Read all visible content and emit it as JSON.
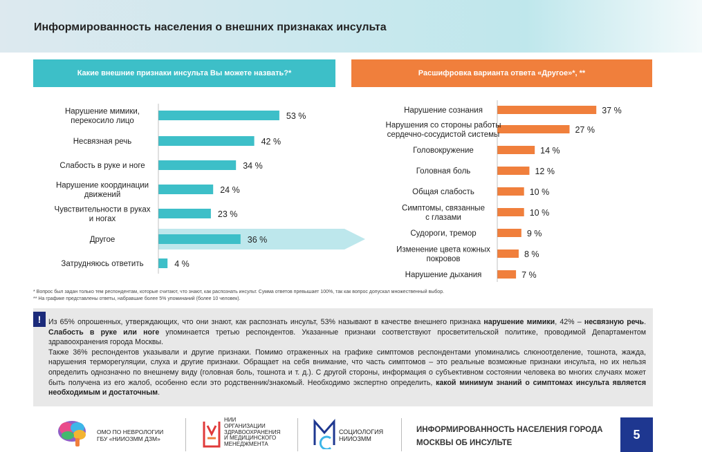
{
  "page": {
    "title": "Информированность населения о внешних признаках инсульта",
    "number": "5"
  },
  "left_panel": {
    "header": "Какие внешние признаки инсульта Вы можете назвать?*"
  },
  "right_panel": {
    "header": "Расшифровка варианта ответа «Другое»*, **"
  },
  "chart_data": [
    {
      "type": "bar",
      "orientation": "horizontal",
      "title": "Какие внешние признаки инсульта Вы можете назвать?*",
      "categories": [
        [
          "Нарушение мимики,",
          "перекосило лицо"
        ],
        [
          "Несвязная речь"
        ],
        [
          "Слабость в руке и ноге"
        ],
        [
          "Нарушение координации",
          "движений"
        ],
        [
          "Чувствительности в руках",
          "и ногах"
        ],
        [
          "Другое"
        ],
        [
          "Затрудняюсь ответить"
        ]
      ],
      "values": [
        53,
        42,
        34,
        24,
        23,
        36,
        4
      ],
      "value_labels": [
        "53 %",
        "42 %",
        "34 %",
        "24 %",
        "23 %",
        "36 %",
        "4 %"
      ],
      "highlighted": "Другое",
      "color": "#3dbfc8",
      "highlight_color": "#bde7ec"
    },
    {
      "type": "bar",
      "orientation": "horizontal",
      "title": "Расшифровка варианта ответа «Другое»*, **",
      "categories": [
        [
          "Нарушение сознания"
        ],
        [
          "Нарушения со стороны работы",
          "сердечно-сосудистой системы"
        ],
        [
          "Головокружение"
        ],
        [
          "Головная боль"
        ],
        [
          "Общая слабость"
        ],
        [
          "Симптомы, связанные",
          "с глазами"
        ],
        [
          "Судороги, тремор"
        ],
        [
          "Изменение цвета кожных",
          "покровов"
        ],
        [
          "Нарушение дыхания"
        ]
      ],
      "values": [
        37,
        27,
        14,
        12,
        10,
        10,
        9,
        8,
        7
      ],
      "value_labels": [
        "37 %",
        "27 %",
        "14 %",
        "12 %",
        "10 %",
        "10 %",
        "9 %",
        "8 %",
        "7 %"
      ],
      "color": "#f07f3c"
    }
  ],
  "footnotes": [
    "* Вопрос был задан только тем респондентам, которые считают, что знают, как распознать инсульт. Сумма ответов превышает 100%, так как вопрос допускал множественный выбор.",
    "** На графике представлены ответы, набравшие более 5% упоминаний (более 10 человек)."
  ],
  "note": {
    "mark": "!",
    "p1_a": "Из 65% опрошенных, утверждающих, что они знают, как распознать инсульт, 53% называют в качестве внешнего признака ",
    "p1_b": "нарушение мимики",
    "p1_c": ", 42% – ",
    "p1_d": "несвязную речь",
    "p1_e": ". ",
    "p1_f": "Слабость в руке или ноге",
    "p1_g": " упоминается третью респондентов. Указанные признаки соответствуют просветительской политике, проводимой Департаментом здравоохранения города Москвы.",
    "p2_a": "Также 36% респондентов указывали и другие признаки. Помимо отраженных на графике симптомов респондентами упоминались слюноотделение, тошнота, жажда, нарушения терморегуляции, слуха и другие признаки. Обращает на себя внимание, что часть симптомов – это реальные возможные признаки инсульта, но их нельзя определить однозначно по внешнему виду (головная боль, тошнота и т. д.). С другой стороны, информация о субъективном состоянии человека во многих случаях может быть получена из его жалоб, особенно если это родственник/знакомый. Необходимо экспертно определить, ",
    "p2_b": "какой минимум знаний о симптомах инсульта является необходимым и достаточным",
    "p2_c": "."
  },
  "footer": {
    "org1_line1": "ОМО ПО НЕВРОЛОГИИ",
    "org1_line2": "ГБУ «НИИОЗММ ДЗМ»",
    "org2_line1": "НИИ",
    "org2_line2": "ОРГАНИЗАЦИИ",
    "org2_line3": "ЗДРАВООХРАНЕНИЯ",
    "org2_line4": "И МЕДИЦИНСКОГО",
    "org2_line5": "МЕНЕДЖМЕНТА",
    "org3_line1": "СОЦИОЛОГИЯ",
    "org3_line2": "НИИОЗММ",
    "title_line1": "Информированность населения города",
    "title_line2": "Москвы об  инсульте"
  },
  "colors": {
    "teal": "#3dbfc8",
    "orange": "#f07f3c",
    "navy": "#1e3790",
    "note_bg": "#e8e8e8"
  }
}
